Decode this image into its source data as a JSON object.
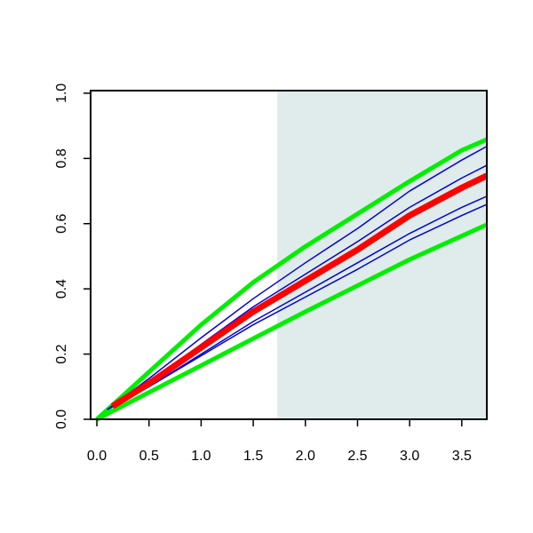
{
  "chart_data": {
    "type": "line",
    "xlim": [
      -0.06,
      3.74
    ],
    "ylim": [
      0,
      1.008
    ],
    "xticks": [
      {
        "value": 0,
        "label": "0.0"
      },
      0.5,
      {
        "value": 1,
        "label": "1.0"
      },
      1.5,
      {
        "value": 2,
        "label": "2.0"
      },
      2.5,
      {
        "value": 3,
        "label": "3.0"
      },
      3.5
    ],
    "yticks": [
      {
        "value": 0,
        "label": "0.0"
      },
      0.2,
      0.4,
      0.6,
      0.8,
      {
        "value": 1,
        "label": "1.0"
      }
    ],
    "highlight_xrange": [
      1.73,
      3.74
    ],
    "highlight_color": "#dfeceb",
    "series": [
      {
        "color": "#00ee00",
        "width": 5,
        "x": [
          0,
          0.5,
          1,
          1.5,
          2,
          2.5,
          3,
          3.5,
          3.74
        ],
        "values": [
          0,
          0.145,
          0.29,
          0.42,
          0.53,
          0.63,
          0.73,
          0.825,
          0.858
        ]
      },
      {
        "color": "#00ee00",
        "width": 5,
        "x": [
          0,
          1,
          2,
          3,
          3.74
        ],
        "values": [
          0,
          0.165,
          0.33,
          0.49,
          0.597
        ]
      },
      {
        "color": "#0000dd",
        "width": 1.5,
        "x": [
          0.1,
          0.5,
          1,
          1.5,
          2,
          2.5,
          3,
          3.5,
          3.74
        ],
        "values": [
          0.03,
          0.125,
          0.25,
          0.37,
          0.48,
          0.585,
          0.7,
          0.795,
          0.837
        ]
      },
      {
        "color": "#0000dd",
        "width": 1.5,
        "x": [
          0.1,
          0.5,
          1,
          1.5,
          2,
          2.5,
          3,
          3.5,
          3.74
        ],
        "values": [
          0.03,
          0.115,
          0.23,
          0.345,
          0.445,
          0.545,
          0.65,
          0.74,
          0.779
        ]
      },
      {
        "color": "#0000dd",
        "width": 1.5,
        "x": [
          0.1,
          0.5,
          1,
          1.5,
          2,
          2.5,
          3,
          3.5,
          3.74
        ],
        "values": [
          0.03,
          0.1,
          0.2,
          0.3,
          0.39,
          0.48,
          0.57,
          0.65,
          0.684
        ]
      },
      {
        "color": "#0000dd",
        "width": 1.5,
        "x": [
          0.1,
          0.5,
          1,
          1.5,
          2,
          2.5,
          3,
          3.5,
          3.74
        ],
        "values": [
          0.03,
          0.1,
          0.195,
          0.29,
          0.375,
          0.46,
          0.55,
          0.625,
          0.659
        ]
      },
      {
        "color": "#ff0000",
        "width": 7,
        "x": [
          0.15,
          0.5,
          1,
          1.5,
          2,
          2.5,
          3,
          3.5,
          3.74
        ],
        "values": [
          0.04,
          0.11,
          0.22,
          0.33,
          0.425,
          0.52,
          0.625,
          0.71,
          0.747
        ]
      }
    ]
  }
}
